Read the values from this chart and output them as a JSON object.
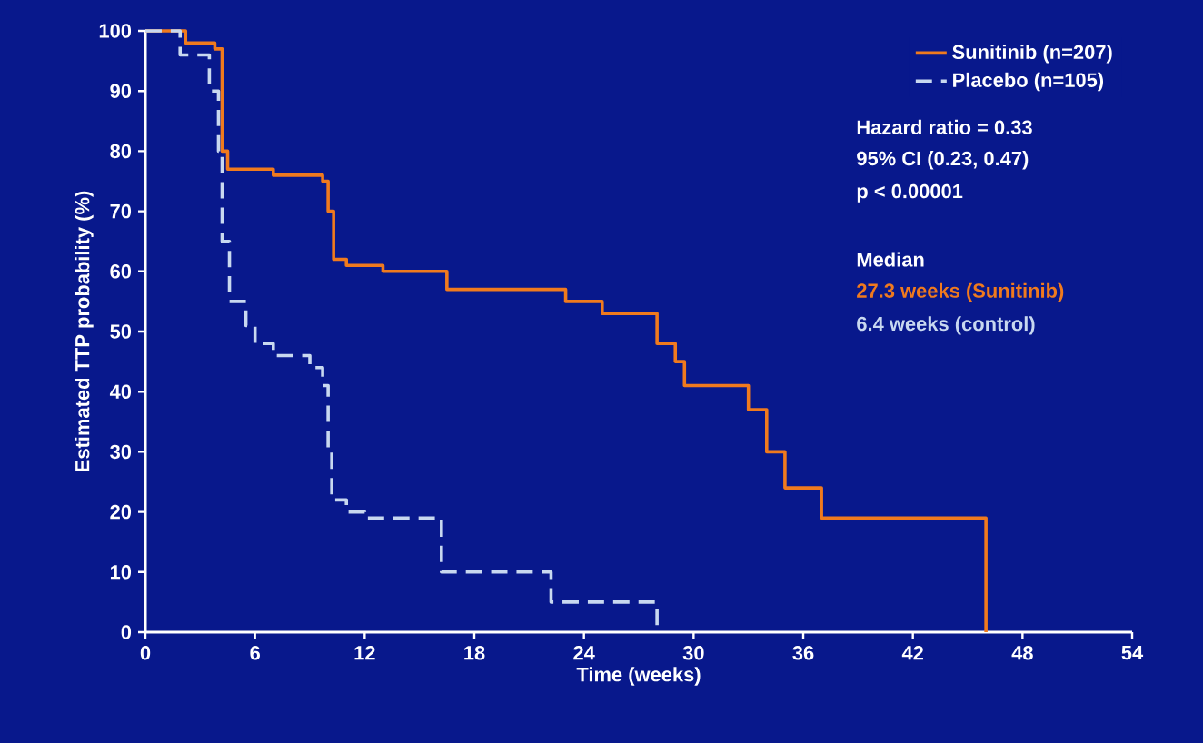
{
  "chart_data": {
    "type": "step",
    "xlabel": "Time (weeks)",
    "ylabel": "Estimated TTP probability (%)",
    "xlim": [
      0,
      54
    ],
    "ylim": [
      0,
      100
    ],
    "xticks": [
      0,
      6,
      12,
      18,
      24,
      30,
      36,
      42,
      48,
      54
    ],
    "yticks": [
      0,
      10,
      20,
      30,
      40,
      50,
      60,
      70,
      80,
      90,
      100
    ],
    "legend": "top right",
    "grid": false,
    "marker": "none",
    "series": [
      {
        "name": "Sunitinib (n=207)",
        "color": "#f07a1e",
        "line_style": "solid",
        "x": [
          0,
          2.2,
          3.8,
          4.2,
          4.5,
          7,
          9.7,
          10,
          10.3,
          11,
          13,
          16.5,
          22,
          23,
          25,
          28,
          29,
          29.5,
          33,
          34,
          35,
          37,
          46,
          46
        ],
        "values": [
          100,
          98,
          97,
          80,
          77,
          76,
          75,
          70,
          62,
          61,
          60,
          57,
          57,
          55,
          53,
          48,
          45,
          41,
          37,
          30,
          24,
          19,
          19,
          0
        ]
      },
      {
        "name": "Placebo (n=105)",
        "color": "#c8d8f0",
        "line_style": "dashed",
        "x": [
          0,
          1.9,
          3.5,
          4,
          4.2,
          4.6,
          5.5,
          6,
          7,
          9,
          9.7,
          10,
          10.2,
          11,
          12,
          16.2,
          22.2,
          28,
          28
        ],
        "values": [
          100,
          96,
          90,
          80,
          65,
          55,
          51,
          48,
          46,
          44,
          41,
          30,
          22,
          20,
          19,
          10,
          5,
          5,
          0
        ]
      }
    ],
    "annotations": [
      "Hazard ratio = 0.33",
      "95% CI (0.23, 0.47)",
      "p < 0.00001",
      "Median",
      "27.3 weeks (Sunitinib)",
      "6.4 weeks   (control)"
    ]
  }
}
